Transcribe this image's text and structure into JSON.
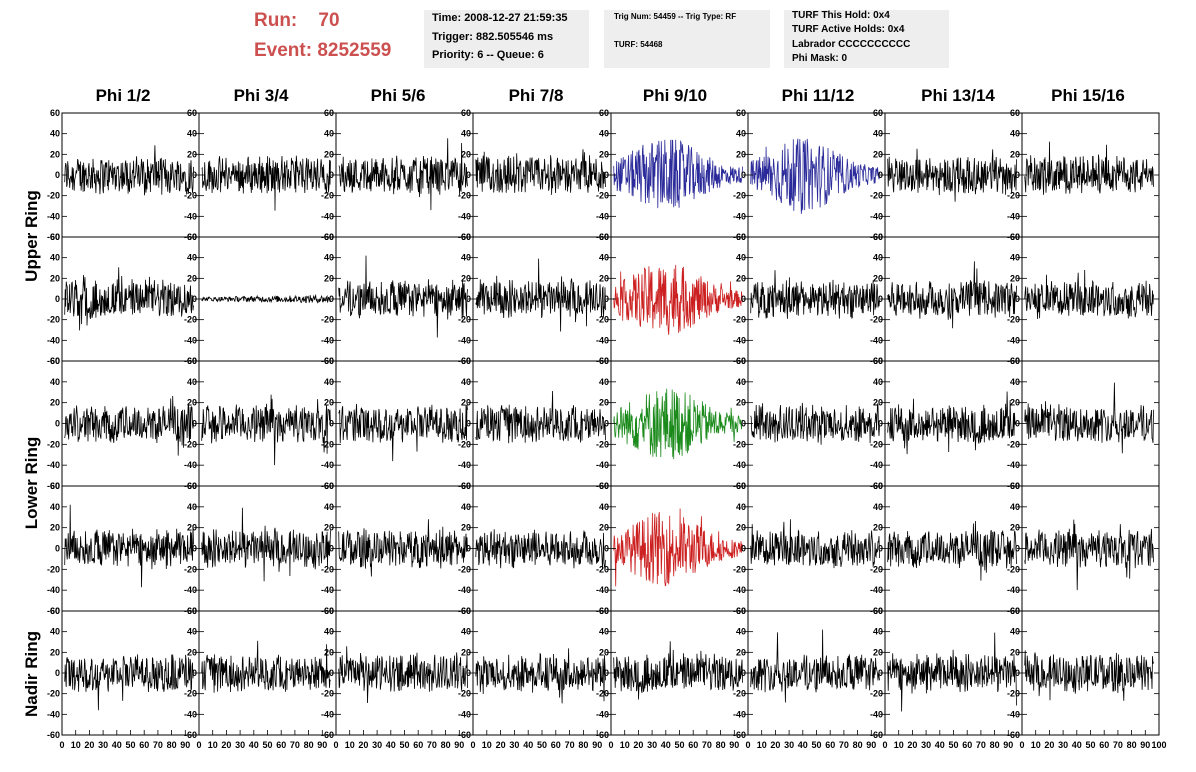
{
  "header": {
    "run_label": "Run:",
    "run_value": "70",
    "event_label": "Event:",
    "event_value": "8252559",
    "time": "Time: 2008-12-27 21:59:35",
    "trigger": "Trigger: 882.505546 ms",
    "priority": "Priority: 6 -- Queue: 6",
    "trig_num": "Trig Num: 54459 -- Trig Type: RF",
    "turf": "TURF: 54468",
    "turf_this_hold": "TURF This Hold: 0x4",
    "turf_active_holds": "TURF Active Holds: 0x4",
    "labrador": "Labrador CCCCCCCCCC",
    "phi_mask": "Phi Mask: 0"
  },
  "columns": [
    "Phi 1/2",
    "Phi 3/4",
    "Phi 5/6",
    "Phi 7/8",
    "Phi 9/10",
    "Phi 11/12",
    "Phi 13/14",
    "Phi 15/16"
  ],
  "rows": [
    {
      "label": "Upper Ring",
      "spans": 2
    },
    {
      "label": "Lower Ring",
      "spans": 2
    },
    {
      "label": "Nadir Ring",
      "spans": 1
    }
  ],
  "colors": {
    "trace_default": "#000000",
    "trace_blue": "#2a2a9a",
    "trace_red": "#cc2020",
    "trace_green": "#1a8a1a",
    "run_text": "#cc5050",
    "info_bg": "#eeeeee"
  },
  "chart_data": {
    "type": "line",
    "grid": "5x8",
    "xlim": [
      0,
      100
    ],
    "ylim": [
      -60,
      60
    ],
    "x_ticks": [
      "0",
      "10",
      "20",
      "30",
      "40",
      "50",
      "60",
      "70",
      "80",
      "90",
      "100"
    ],
    "y_ticks": [
      "-60",
      "-40",
      "-20",
      "0",
      "20",
      "40",
      "60"
    ],
    "highlighted_panels": [
      {
        "row": 0,
        "col": 4,
        "color": "blue"
      },
      {
        "row": 0,
        "col": 5,
        "color": "blue"
      },
      {
        "row": 1,
        "col": 4,
        "color": "red"
      },
      {
        "row": 2,
        "col": 4,
        "color": "green"
      },
      {
        "row": 3,
        "col": 4,
        "color": "red"
      }
    ],
    "flat_panels": [
      {
        "row": 1,
        "col": 1
      }
    ]
  }
}
